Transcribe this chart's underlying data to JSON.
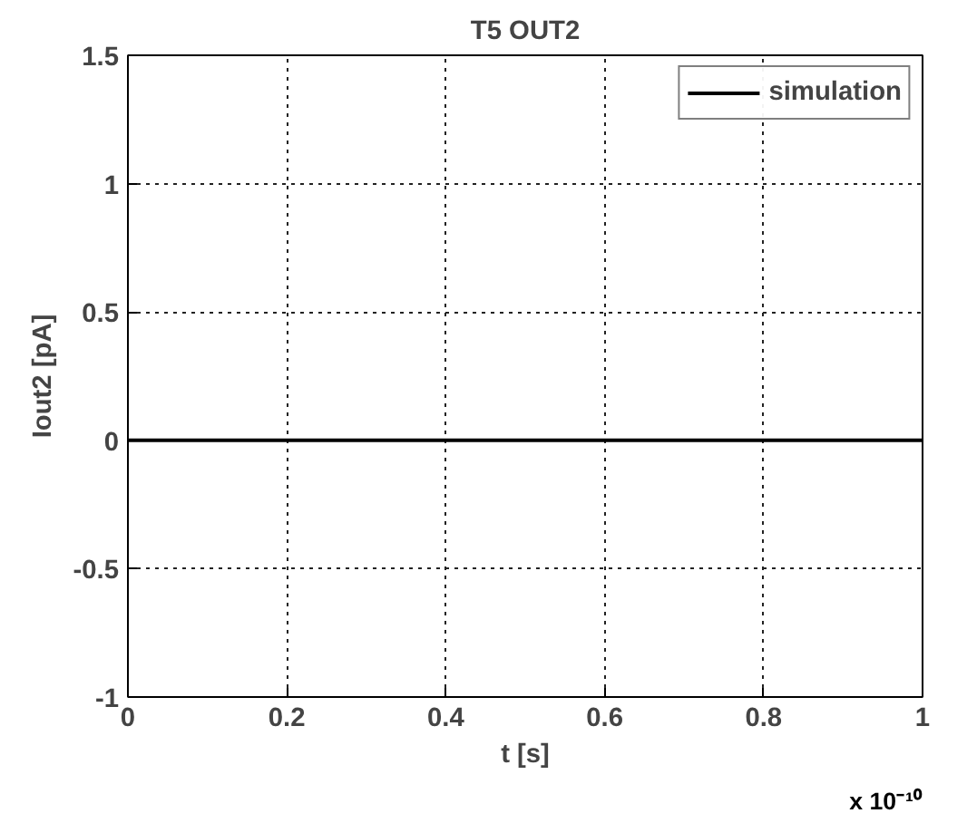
{
  "chart_data": {
    "type": "line",
    "title": "T5 OUT2",
    "xlabel": "t [s]",
    "ylabel": "Iout2 [pA]",
    "x": [
      0,
      1
    ],
    "series": [
      {
        "name": "simulation",
        "color": "#000000",
        "values": [
          0,
          0
        ]
      }
    ],
    "xlim": [
      0,
      1
    ],
    "xticks": [
      0,
      {
        "value": 0.2,
        "label": "0.2"
      },
      {
        "value": 0.4,
        "label": "0.4"
      },
      {
        "value": 0.6,
        "label": "0.6"
      },
      {
        "value": 0.8,
        "label": "0.8"
      },
      1
    ],
    "ylim": [
      -1,
      1.5
    ],
    "yticks": [
      -1,
      {
        "value": -0.5,
        "label": "-0.5"
      },
      0,
      {
        "value": 0.5,
        "label": "0.5"
      },
      1,
      {
        "value": 1.5,
        "label": "1.5"
      }
    ],
    "annotations": [
      "x 10⁻¹⁰"
    ],
    "grid": true,
    "legend": "top right",
    "line_style": "solid",
    "marker": "none"
  }
}
